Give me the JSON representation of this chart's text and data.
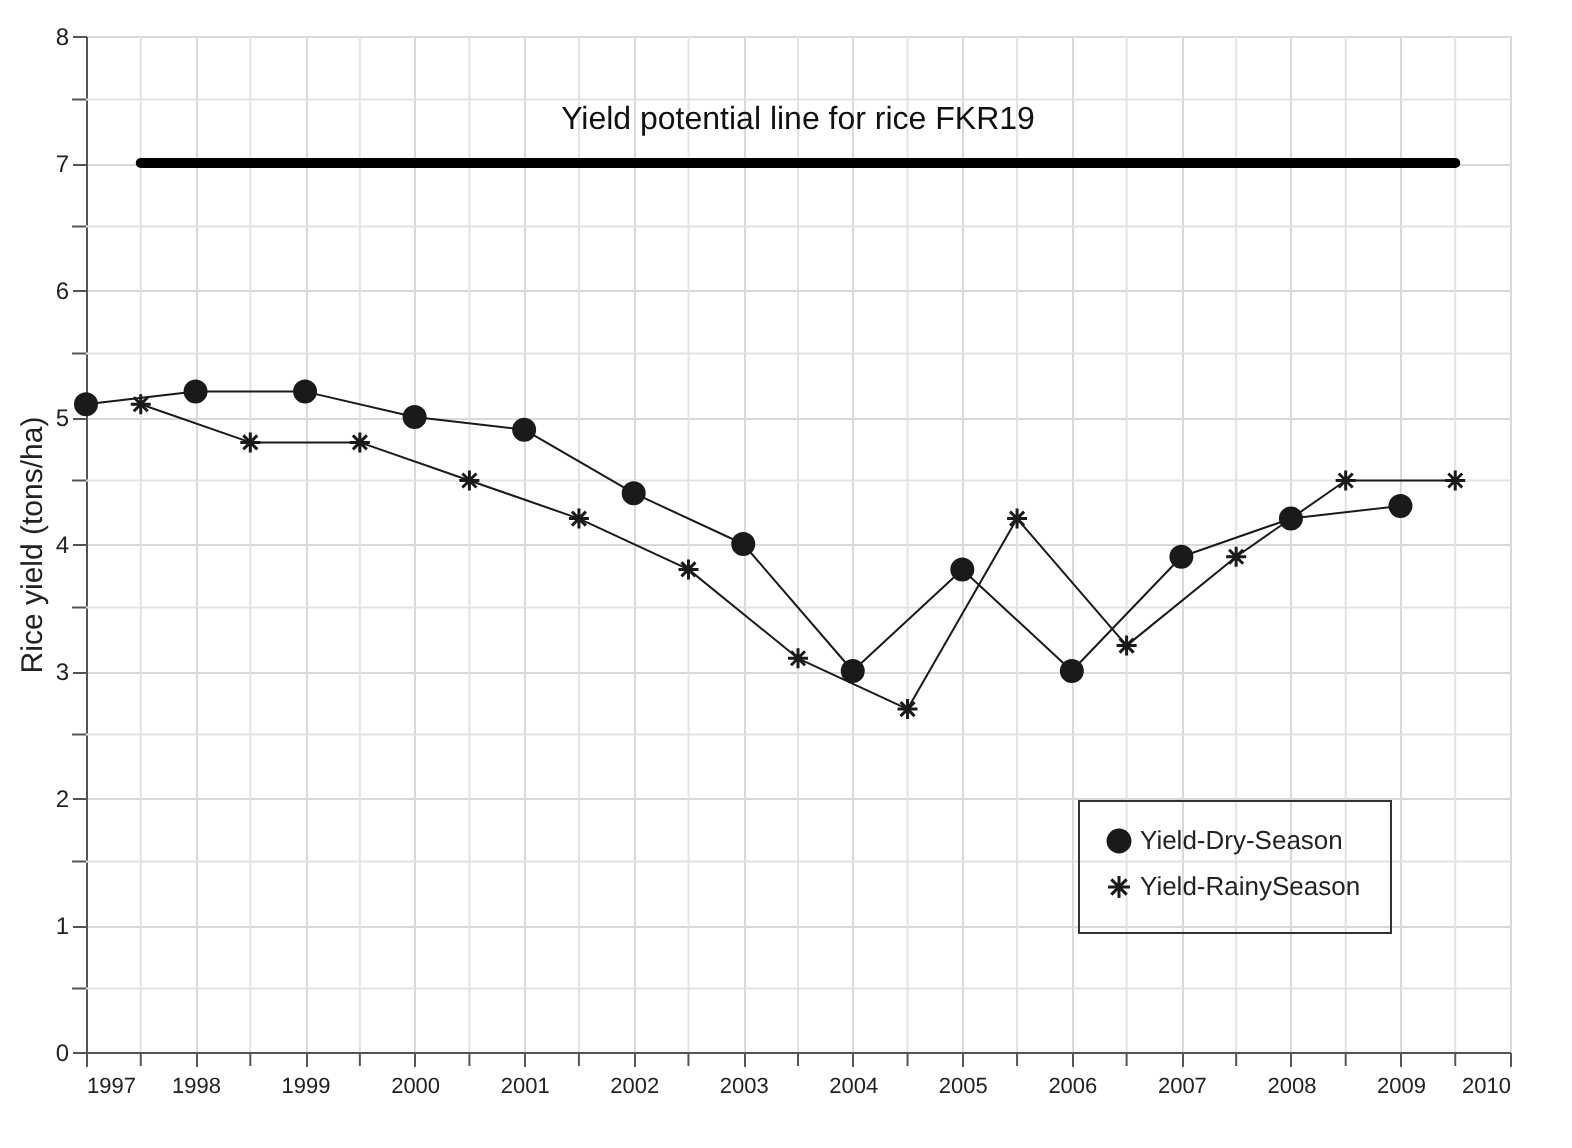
{
  "chart_data": {
    "type": "line",
    "ylabel": "Rice yield (tons/ha)",
    "xlim": [
      1997,
      2010
    ],
    "xticks": [
      1997,
      {
        "value": 1997.5,
        "label": null
      },
      1998,
      {
        "value": 1998.5,
        "label": null
      },
      1999,
      {
        "value": 1999.5,
        "label": null
      },
      2000,
      {
        "value": 2000.5,
        "label": null
      },
      2001,
      {
        "value": 2001.5,
        "label": null
      },
      2002,
      {
        "value": 2002.5,
        "label": null
      },
      2003,
      {
        "value": 2003.5,
        "label": null
      },
      2004,
      {
        "value": 2004.5,
        "label": null
      },
      2005,
      {
        "value": 2005.5,
        "label": null
      },
      2006,
      {
        "value": 2006.5,
        "label": null
      },
      2007,
      {
        "value": 2007.5,
        "label": null
      },
      2008,
      {
        "value": 2008.5,
        "label": null
      },
      2009,
      {
        "value": 2009.5,
        "label": null
      },
      2010
    ],
    "ylim": [
      0,
      8
    ],
    "yticks": [
      0,
      {
        "value": 0.5,
        "label": null
      },
      1,
      {
        "value": 1.5,
        "label": null
      },
      2,
      {
        "value": 2.5,
        "label": null
      },
      3,
      {
        "value": 3.5,
        "label": null
      },
      4,
      {
        "value": 4.5,
        "label": null
      },
      5,
      {
        "value": 5.5,
        "label": null
      },
      6,
      {
        "value": 6.5,
        "label": null
      },
      7,
      {
        "value": 7.5,
        "label": null
      },
      8
    ],
    "grid": true,
    "legend": "bottom right",
    "series": [
      {
        "name": "Yield-Dry-Season",
        "color": "#1a1a1a",
        "marker": "circle",
        "x": [
          1997,
          1998,
          1999,
          2000,
          2001,
          2002,
          2003,
          2004,
          2005,
          2006,
          2007,
          2008,
          2009
        ],
        "values": [
          5.1,
          5.2,
          5.2,
          5.0,
          4.9,
          4.4,
          4.0,
          3.0,
          3.8,
          3.0,
          3.9,
          4.2,
          4.3
        ]
      },
      {
        "name": "Yield-RainySeason",
        "color": "#1a1a1a",
        "marker": "cross",
        "x": [
          1997.5,
          1998.5,
          1999.5,
          2000.5,
          2001.5,
          2002.5,
          2003.5,
          2004.5,
          2005.5,
          2006.5,
          2007.5,
          2008.5,
          2009.5
        ],
        "values": [
          5.1,
          4.8,
          4.8,
          4.5,
          4.2,
          3.8,
          3.1,
          2.7,
          4.2,
          3.2,
          3.9,
          4.5,
          4.5
        ]
      },
      {
        "color": "#000000",
        "marker": "none",
        "x": [
          1997.5,
          2009.5
        ],
        "values": [
          7,
          7
        ]
      }
    ],
    "annotations": [
      {
        "text": "Yield potential line for rice FKR19",
        "x": 2003.5,
        "y": 7
      }
    ]
  }
}
